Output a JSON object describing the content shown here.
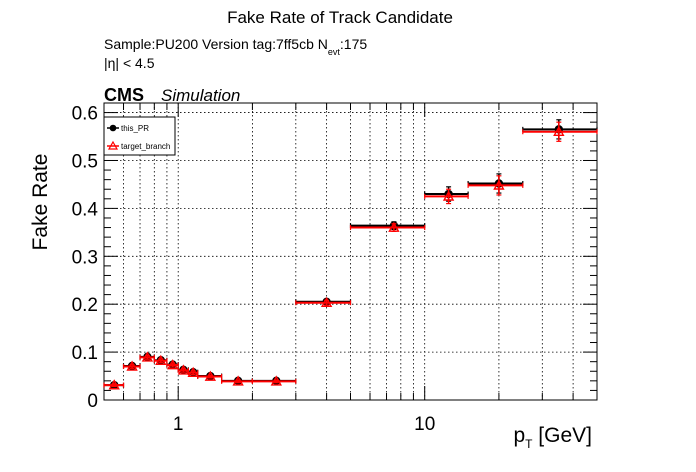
{
  "chart_data": {
    "type": "scatter",
    "title": "Fake Rate of Track Candidate",
    "info_line1_prefix": "Sample:PU200   Version tag:7ff5cb  N",
    "info_line1_sub": "evt",
    "info_line1_suffix": ":175",
    "info_line2": "|η| < 4.5",
    "cms_label": "CMS",
    "cms_sublabel": "Simulation",
    "xlabel_main": "p",
    "xlabel_sub": "T",
    "xlabel_unit": " [GeV]",
    "ylabel": "Fake Rate",
    "x_scale": "log",
    "xlim": [
      0.5,
      50
    ],
    "ylim": [
      0,
      0.62
    ],
    "yticks": [
      0,
      0.1,
      0.2,
      0.3,
      0.4,
      0.5,
      0.6
    ],
    "ytick_labels": [
      "0",
      "0.1",
      "0.2",
      "0.3",
      "0.4",
      "0.5",
      "0.6"
    ],
    "xticks_major": [
      1,
      10
    ],
    "xtick_labels": [
      "1",
      "10"
    ],
    "grid": true,
    "legend_position": "top-left",
    "series": [
      {
        "name": "this_PR",
        "color": "#000000",
        "marker": "circle",
        "points": [
          {
            "x": 0.55,
            "xlo": 0.5,
            "xhi": 0.6,
            "y": 0.031,
            "yerr": 0.003
          },
          {
            "x": 0.65,
            "xlo": 0.6,
            "xhi": 0.7,
            "y": 0.071,
            "yerr": 0.004
          },
          {
            "x": 0.75,
            "xlo": 0.7,
            "xhi": 0.8,
            "y": 0.09,
            "yerr": 0.004
          },
          {
            "x": 0.85,
            "xlo": 0.8,
            "xhi": 0.9,
            "y": 0.083,
            "yerr": 0.004
          },
          {
            "x": 0.95,
            "xlo": 0.9,
            "xhi": 1.0,
            "y": 0.074,
            "yerr": 0.004
          },
          {
            "x": 1.05,
            "xlo": 1.0,
            "xhi": 1.1,
            "y": 0.063,
            "yerr": 0.004
          },
          {
            "x": 1.15,
            "xlo": 1.1,
            "xhi": 1.2,
            "y": 0.058,
            "yerr": 0.004
          },
          {
            "x": 1.35,
            "xlo": 1.2,
            "xhi": 1.5,
            "y": 0.05,
            "yerr": 0.003
          },
          {
            "x": 1.75,
            "xlo": 1.5,
            "xhi": 2.0,
            "y": 0.04,
            "yerr": 0.003
          },
          {
            "x": 2.5,
            "xlo": 2.0,
            "xhi": 3.0,
            "y": 0.04,
            "yerr": 0.003
          },
          {
            "x": 4.0,
            "xlo": 3.0,
            "xhi": 5.0,
            "y": 0.205,
            "yerr": 0.005
          },
          {
            "x": 7.5,
            "xlo": 5.0,
            "xhi": 10.0,
            "y": 0.364,
            "yerr": 0.008
          },
          {
            "x": 12.5,
            "xlo": 10.0,
            "xhi": 15.0,
            "y": 0.43,
            "yerr": 0.015
          },
          {
            "x": 20.0,
            "xlo": 15.0,
            "xhi": 25.0,
            "y": 0.452,
            "yerr": 0.02
          },
          {
            "x": 35.0,
            "xlo": 25.0,
            "xhi": 50.0,
            "y": 0.565,
            "yerr": 0.02
          }
        ]
      },
      {
        "name": "target_branch",
        "color": "#ff0000",
        "marker": "triangle",
        "points": [
          {
            "x": 0.55,
            "xlo": 0.5,
            "xhi": 0.6,
            "y": 0.031,
            "yerr": 0.003
          },
          {
            "x": 0.65,
            "xlo": 0.6,
            "xhi": 0.7,
            "y": 0.07,
            "yerr": 0.004
          },
          {
            "x": 0.75,
            "xlo": 0.7,
            "xhi": 0.8,
            "y": 0.089,
            "yerr": 0.004
          },
          {
            "x": 0.85,
            "xlo": 0.8,
            "xhi": 0.9,
            "y": 0.082,
            "yerr": 0.004
          },
          {
            "x": 0.95,
            "xlo": 0.9,
            "xhi": 1.0,
            "y": 0.073,
            "yerr": 0.004
          },
          {
            "x": 1.05,
            "xlo": 1.0,
            "xhi": 1.1,
            "y": 0.062,
            "yerr": 0.004
          },
          {
            "x": 1.15,
            "xlo": 1.1,
            "xhi": 1.2,
            "y": 0.057,
            "yerr": 0.004
          },
          {
            "x": 1.35,
            "xlo": 1.2,
            "xhi": 1.5,
            "y": 0.049,
            "yerr": 0.003
          },
          {
            "x": 1.75,
            "xlo": 1.5,
            "xhi": 2.0,
            "y": 0.039,
            "yerr": 0.003
          },
          {
            "x": 2.5,
            "xlo": 2.0,
            "xhi": 3.0,
            "y": 0.039,
            "yerr": 0.003
          },
          {
            "x": 4.0,
            "xlo": 3.0,
            "xhi": 5.0,
            "y": 0.203,
            "yerr": 0.005
          },
          {
            "x": 7.5,
            "xlo": 5.0,
            "xhi": 10.0,
            "y": 0.36,
            "yerr": 0.008
          },
          {
            "x": 12.5,
            "xlo": 10.0,
            "xhi": 15.0,
            "y": 0.425,
            "yerr": 0.015
          },
          {
            "x": 20.0,
            "xlo": 15.0,
            "xhi": 25.0,
            "y": 0.448,
            "yerr": 0.02
          },
          {
            "x": 35.0,
            "xlo": 25.0,
            "xhi": 50.0,
            "y": 0.56,
            "yerr": 0.02
          }
        ]
      }
    ]
  }
}
